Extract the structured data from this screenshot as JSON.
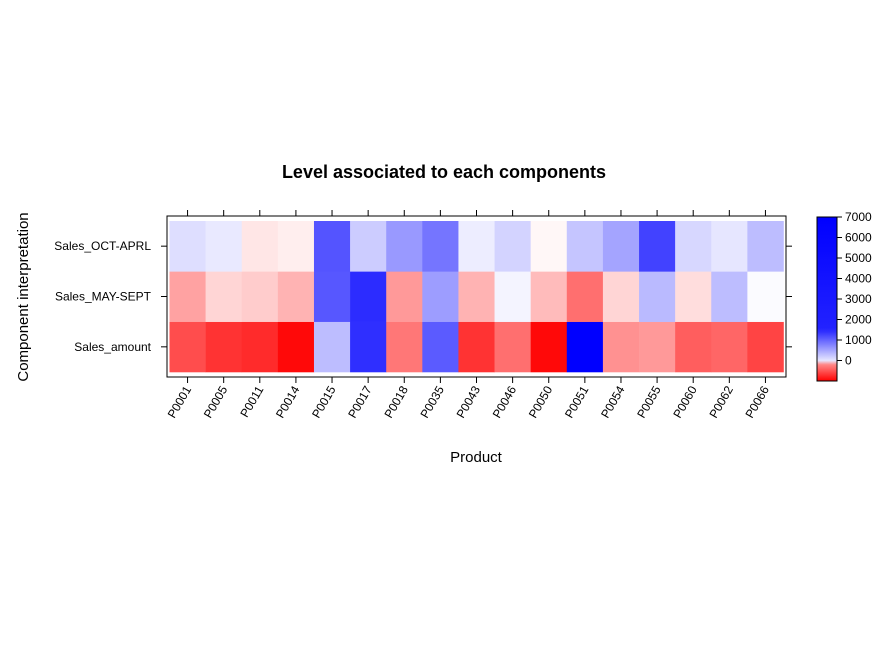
{
  "chart_data": {
    "type": "heatmap",
    "title": "Level associated to each components",
    "xlabel": "Product",
    "ylabel": "Component interpretation",
    "x": [
      "P0001",
      "P0005",
      "P0011",
      "P0014",
      "P0015",
      "P0017",
      "P0018",
      "P0035",
      "P0043",
      "P0046",
      "P0050",
      "P0051",
      "P0054",
      "P0055",
      "P0060",
      "P0062",
      "P0066"
    ],
    "y": [
      "Sales_amount",
      "Sales_MAY-SEPT",
      "Sales_OCT-APRL"
    ],
    "values": [
      [
        -2100,
        -2400,
        -2500,
        -2900,
        1800,
        5700,
        -1600,
        4500,
        -2400,
        -1700,
        -2900,
        7000,
        -1300,
        -1200,
        -1900,
        -1800,
        -2200
      ],
      [
        -1100,
        -500,
        -600,
        -900,
        4600,
        5800,
        -1200,
        2700,
        -900,
        300,
        -800,
        -1700,
        -500,
        1900,
        -400,
        1800,
        100
      ],
      [
        900,
        600,
        -300,
        -200,
        4700,
        1400,
        2800,
        3800,
        500,
        1200,
        -100,
        1600,
        2500,
        5200,
        1100,
        700,
        1800
      ]
    ],
    "colorbar": {
      "ticks": [
        0,
        1000,
        2000,
        3000,
        4000,
        5000,
        6000,
        7000
      ],
      "range": [
        -1000,
        7000
      ],
      "low_color": "#ff0000",
      "mid_color": "#ffffff",
      "high_color": "#0000ff"
    }
  }
}
